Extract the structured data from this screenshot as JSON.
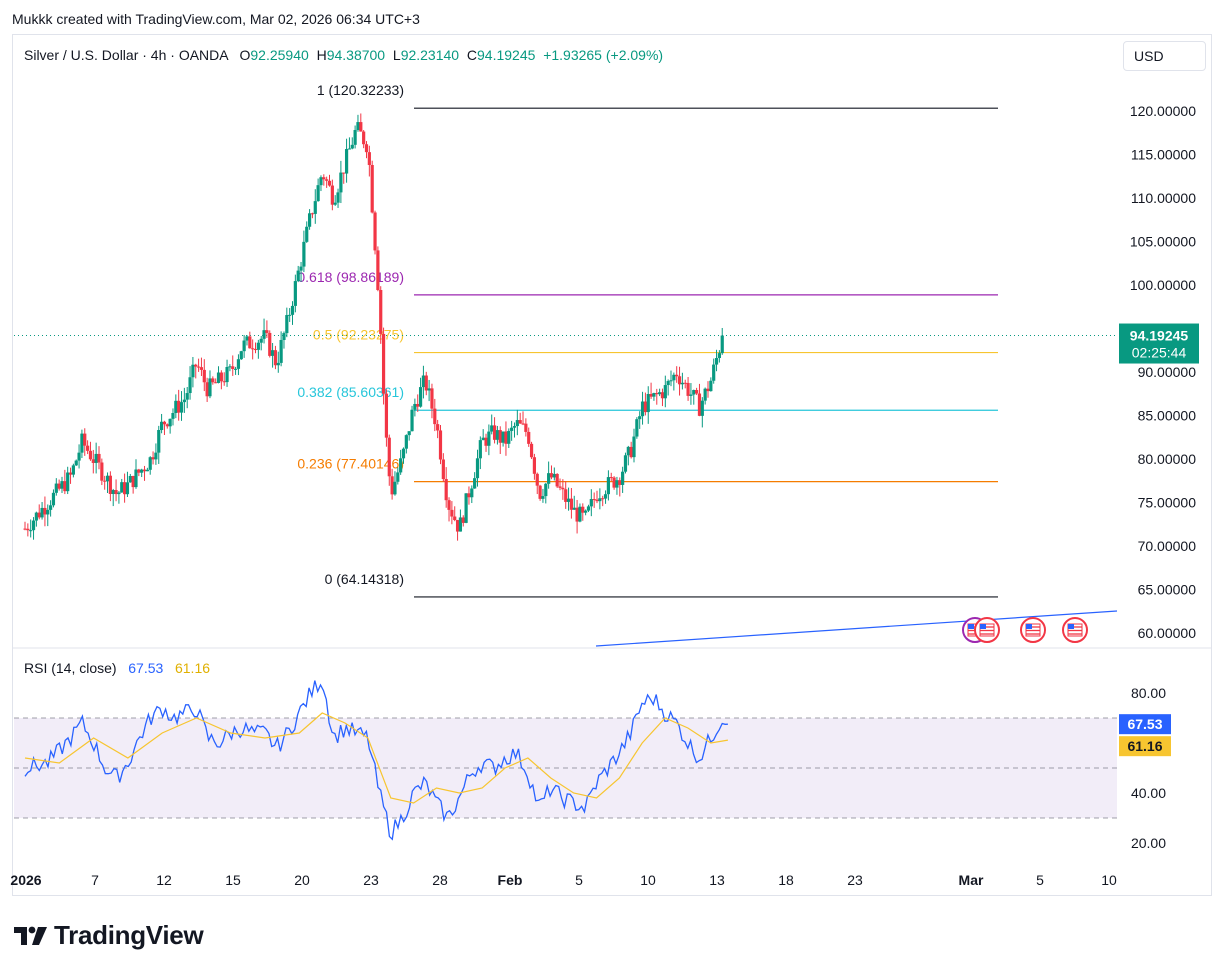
{
  "header": {
    "attribution": "Mukkk created with TradingView.com, Mar 02, 2026 06:34 UTC+3"
  },
  "legend": {
    "symbol": "Silver / U.S. Dollar · 4h · OANDA",
    "o_label": "O",
    "o_value": "92.25940",
    "h_label": "H",
    "h_value": "94.38700",
    "l_label": "L",
    "l_value": "92.23140",
    "c_label": "C",
    "c_value": "94.19245",
    "change": "+1.93265 (+2.09%)"
  },
  "currency": "USD",
  "price_label": {
    "value": "94.19245",
    "countdown": "02:25:44"
  },
  "rsi": {
    "title": "RSI (14, close)",
    "rsi_value": "67.53",
    "ma_value": "61.16"
  },
  "brand": {
    "name": "TradingView"
  },
  "colors": {
    "up": "#089981",
    "down": "#f23645",
    "rsi_line": "#2962ff",
    "rsi_ma": "#f7c530",
    "fib_1": "#131722",
    "fib_0618": "#9c27b0",
    "fib_05": "#f7c530",
    "fib_0382": "#26c6da",
    "fib_0236": "#f57c00",
    "fib_0": "#131722"
  },
  "chart_data": [
    {
      "type": "candlestick",
      "title": "Silver / U.S. Dollar · 4h · OANDA",
      "x_tick_labels": [
        "2026",
        "7",
        "12",
        "15",
        "20",
        "23",
        "28",
        "Feb",
        "5",
        "10",
        "13",
        "18",
        "23",
        "Mar",
        "5",
        "10"
      ],
      "y_tick_labels": [
        "120.00000",
        "115.00000",
        "110.00000",
        "105.00000",
        "100.00000",
        "95.00000",
        "90.00000",
        "85.00000",
        "80.00000",
        "75.00000",
        "70.00000",
        "65.00000",
        "60.00000"
      ],
      "ylim": [
        59,
        123
      ],
      "fib_levels": [
        {
          "label": "1 (120.32233)",
          "ratio": "1",
          "value": 120.32233
        },
        {
          "label": "0.618 (98.86189)",
          "ratio": "0.618",
          "value": 98.86189
        },
        {
          "label": "0.5 (92.23275)",
          "ratio": "0.5",
          "value": 92.23275
        },
        {
          "label": "0.382 (85.60361)",
          "ratio": "0.382",
          "value": 85.60361
        },
        {
          "label": "0.236 (77.40146)",
          "ratio": "0.236",
          "value": 77.40146
        },
        {
          "label": "0 (64.14318)",
          "ratio": "0",
          "value": 64.14318
        }
      ],
      "last_price": 94.19245,
      "approx_path": [
        {
          "day": 0,
          "price": 72
        },
        {
          "day": 2,
          "price": 75
        },
        {
          "day": 4,
          "price": 78
        },
        {
          "day": 5,
          "price": 82
        },
        {
          "day": 7,
          "price": 78
        },
        {
          "day": 8,
          "price": 76
        },
        {
          "day": 9,
          "price": 77
        },
        {
          "day": 11,
          "price": 80
        },
        {
          "day": 12,
          "price": 84
        },
        {
          "day": 14,
          "price": 87
        },
        {
          "day": 15,
          "price": 91
        },
        {
          "day": 16,
          "price": 88
        },
        {
          "day": 18,
          "price": 90
        },
        {
          "day": 19,
          "price": 93
        },
        {
          "day": 21,
          "price": 94
        },
        {
          "day": 22,
          "price": 91
        },
        {
          "day": 23,
          "price": 96
        },
        {
          "day": 24,
          "price": 102
        },
        {
          "day": 25,
          "price": 108
        },
        {
          "day": 26,
          "price": 113
        },
        {
          "day": 27,
          "price": 110
        },
        {
          "day": 28,
          "price": 114
        },
        {
          "day": 29,
          "price": 118
        },
        {
          "day": 30,
          "price": 116
        },
        {
          "day": 31,
          "price": 98
        },
        {
          "day": 31.5,
          "price": 84
        },
        {
          "day": 32,
          "price": 76
        },
        {
          "day": 33,
          "price": 80
        },
        {
          "day": 34,
          "price": 86
        },
        {
          "day": 35,
          "price": 89
        },
        {
          "day": 36,
          "price": 84
        },
        {
          "day": 37,
          "price": 75
        },
        {
          "day": 38,
          "price": 72
        },
        {
          "day": 39,
          "price": 77
        },
        {
          "day": 40,
          "price": 82
        },
        {
          "day": 41,
          "price": 83
        },
        {
          "day": 42,
          "price": 82
        },
        {
          "day": 43,
          "price": 84
        },
        {
          "day": 44,
          "price": 83
        },
        {
          "day": 45,
          "price": 76
        },
        {
          "day": 46,
          "price": 78
        },
        {
          "day": 47,
          "price": 76
        },
        {
          "day": 48,
          "price": 74
        },
        {
          "day": 49,
          "price": 73
        },
        {
          "day": 50,
          "price": 76
        },
        {
          "day": 51,
          "price": 77
        },
        {
          "day": 52,
          "price": 78
        },
        {
          "day": 53,
          "price": 81
        },
        {
          "day": 54,
          "price": 86
        },
        {
          "day": 55,
          "price": 87
        },
        {
          "day": 56,
          "price": 88
        },
        {
          "day": 57,
          "price": 90
        },
        {
          "day": 58,
          "price": 88
        },
        {
          "day": 59,
          "price": 86
        },
        {
          "day": 60,
          "price": 89
        },
        {
          "day": 61,
          "price": 94
        }
      ]
    },
    {
      "type": "line",
      "title": "RSI (14, close)",
      "y_tick_labels": [
        "80.00",
        "40.00",
        "20.00"
      ],
      "ylim": [
        15,
        92
      ],
      "band": [
        30,
        70
      ],
      "series": [
        {
          "name": "RSI",
          "points": [
            {
              "day": 0,
              "value": 50
            },
            {
              "day": 2,
              "value": 52
            },
            {
              "day": 4,
              "value": 62
            },
            {
              "day": 5,
              "value": 68
            },
            {
              "day": 6,
              "value": 60
            },
            {
              "day": 7,
              "value": 50
            },
            {
              "day": 8,
              "value": 46
            },
            {
              "day": 9,
              "value": 52
            },
            {
              "day": 10,
              "value": 62
            },
            {
              "day": 11,
              "value": 70
            },
            {
              "day": 12,
              "value": 74
            },
            {
              "day": 13,
              "value": 70
            },
            {
              "day": 14,
              "value": 72
            },
            {
              "day": 15,
              "value": 74
            },
            {
              "day": 16,
              "value": 62
            },
            {
              "day": 17,
              "value": 60
            },
            {
              "day": 18,
              "value": 64
            },
            {
              "day": 19,
              "value": 66
            },
            {
              "day": 20,
              "value": 64
            },
            {
              "day": 21,
              "value": 64
            },
            {
              "day": 22,
              "value": 58
            },
            {
              "day": 23,
              "value": 64
            },
            {
              "day": 24,
              "value": 72
            },
            {
              "day": 25,
              "value": 80
            },
            {
              "day": 26,
              "value": 86
            },
            {
              "day": 27,
              "value": 62
            },
            {
              "day": 28,
              "value": 66
            },
            {
              "day": 29,
              "value": 64
            },
            {
              "day": 30,
              "value": 62
            },
            {
              "day": 31,
              "value": 40
            },
            {
              "day": 32,
              "value": 24
            },
            {
              "day": 33,
              "value": 30
            },
            {
              "day": 34,
              "value": 40
            },
            {
              "day": 35,
              "value": 44
            },
            {
              "day": 36,
              "value": 36
            },
            {
              "day": 37,
              "value": 30
            },
            {
              "day": 38,
              "value": 38
            },
            {
              "day": 39,
              "value": 48
            },
            {
              "day": 40,
              "value": 52
            },
            {
              "day": 41,
              "value": 50
            },
            {
              "day": 42,
              "value": 54
            },
            {
              "day": 43,
              "value": 56
            },
            {
              "day": 44,
              "value": 48
            },
            {
              "day": 45,
              "value": 34
            },
            {
              "day": 46,
              "value": 42
            },
            {
              "day": 47,
              "value": 38
            },
            {
              "day": 48,
              "value": 36
            },
            {
              "day": 49,
              "value": 34
            },
            {
              "day": 50,
              "value": 44
            },
            {
              "day": 51,
              "value": 50
            },
            {
              "day": 52,
              "value": 56
            },
            {
              "day": 53,
              "value": 64
            },
            {
              "day": 54,
              "value": 76
            },
            {
              "day": 55,
              "value": 78
            },
            {
              "day": 56,
              "value": 72
            },
            {
              "day": 57,
              "value": 68
            },
            {
              "day": 58,
              "value": 60
            },
            {
              "day": 59,
              "value": 54
            },
            {
              "day": 60,
              "value": 62
            },
            {
              "day": 61,
              "value": 70
            },
            {
              "day": 61.5,
              "value": 67.53
            }
          ]
        },
        {
          "name": "RSI-based MA",
          "points": [
            {
              "day": 0,
              "value": 54
            },
            {
              "day": 3,
              "value": 52
            },
            {
              "day": 6,
              "value": 62
            },
            {
              "day": 9,
              "value": 54
            },
            {
              "day": 12,
              "value": 64
            },
            {
              "day": 15,
              "value": 70
            },
            {
              "day": 18,
              "value": 64
            },
            {
              "day": 21,
              "value": 62
            },
            {
              "day": 24,
              "value": 64
            },
            {
              "day": 26,
              "value": 72
            },
            {
              "day": 28,
              "value": 68
            },
            {
              "day": 30,
              "value": 62
            },
            {
              "day": 32,
              "value": 38
            },
            {
              "day": 34,
              "value": 36
            },
            {
              "day": 36,
              "value": 42
            },
            {
              "day": 38,
              "value": 40
            },
            {
              "day": 40,
              "value": 42
            },
            {
              "day": 42,
              "value": 50
            },
            {
              "day": 44,
              "value": 54
            },
            {
              "day": 46,
              "value": 46
            },
            {
              "day": 48,
              "value": 40
            },
            {
              "day": 50,
              "value": 38
            },
            {
              "day": 52,
              "value": 46
            },
            {
              "day": 54,
              "value": 60
            },
            {
              "day": 56,
              "value": 70
            },
            {
              "day": 58,
              "value": 66
            },
            {
              "day": 60,
              "value": 60
            },
            {
              "day": 61.5,
              "value": 61.16
            }
          ]
        }
      ]
    }
  ]
}
